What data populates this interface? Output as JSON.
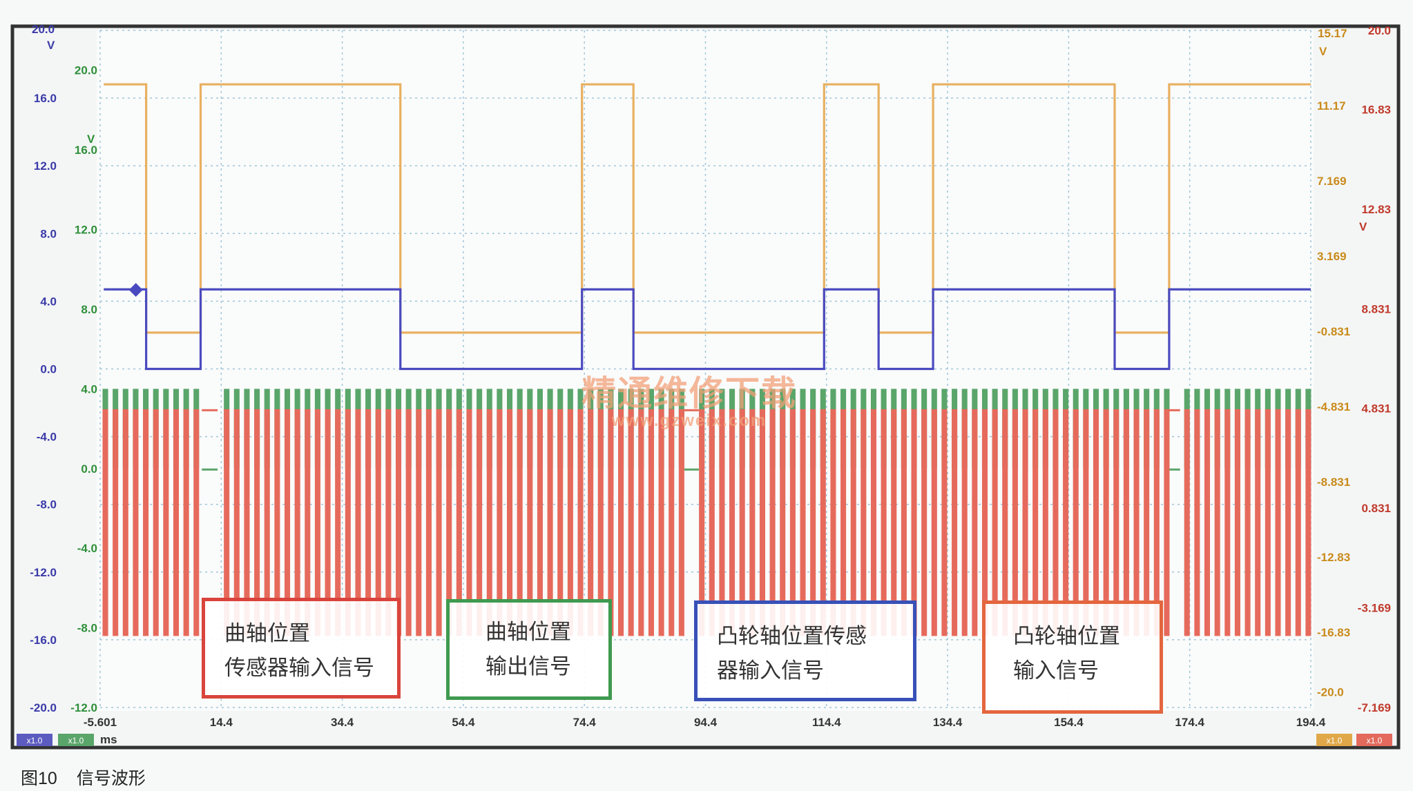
{
  "chart_data": {
    "type": "line",
    "title": "",
    "x_unit": "ms",
    "x_ticks": [
      "-5.601",
      "14.4",
      "34.4",
      "54.4",
      "74.4",
      "94.4",
      "114.4",
      "134.4",
      "154.4",
      "174.4",
      "194.4"
    ],
    "xlim": [
      -5.601,
      194.4
    ],
    "axes": {
      "blue_v": {
        "unit_label": "V",
        "top_label": "20.0",
        "ticks": [
          "16.0",
          "12.0",
          "8.0",
          "4.0",
          "0.0",
          "-4.0",
          "-8.0",
          "-12.0",
          "-16.0",
          "-20.0"
        ],
        "ylim": [
          -20,
          20
        ],
        "color": "#3a3aa8"
      },
      "green_v": {
        "unit_label": "V",
        "ticks": [
          "20.0",
          "16.0",
          "12.0",
          "8.0",
          "4.0",
          "0.0",
          "-4.0",
          "-8.0",
          "-12.0"
        ],
        "ylim": [
          -12,
          22
        ],
        "color": "#2f8f3a"
      },
      "orange_v": {
        "unit_label": "V",
        "top_label": "15.17",
        "ticks": [
          "11.17",
          "7.169",
          "3.169",
          "-0.831",
          "-4.831",
          "-8.831",
          "-12.83",
          "-16.83",
          "-20.0"
        ],
        "ylim": [
          -20.83,
          15.17
        ],
        "color": "#c98a1a"
      },
      "red_v": {
        "unit_label": "V",
        "ticks": [
          "20.0",
          "16.83",
          "12.83",
          "8.831",
          "4.831",
          "0.831",
          "-3.169",
          "-7.169"
        ],
        "ylim": [
          -7.169,
          20.0
        ],
        "color": "#c0392b"
      }
    },
    "series": [
      {
        "axis": "orange_v",
        "color": "#e8b060",
        "high": 12.3,
        "low": -0.9,
        "transitions_ms": [
          2.0,
          11.0,
          44.0,
          74.0,
          82.5,
          114.0,
          123.0,
          132.0,
          162.0,
          171.0
        ],
        "start_level": "high"
      },
      {
        "axis": "blue_v",
        "color": "#4a4ac0",
        "high": 4.7,
        "low": 0.0,
        "transitions_ms": [
          2.0,
          11.0,
          44.0,
          74.0,
          82.5,
          114.0,
          123.0,
          132.0,
          162.0,
          171.0
        ],
        "start_level": "high"
      },
      {
        "axis": "green_v",
        "color": "#5aa56a",
        "high": 4.0,
        "low": 0.0,
        "pulse_period_ms": 1.67,
        "missing_tooth_ms": [
          12.5,
          92.0,
          171.5
        ]
      },
      {
        "axis": "red_v",
        "color": "#e66a5c",
        "high": 4.8,
        "low": -4.3,
        "pulse_period_ms": 1.67,
        "missing_tooth_ms": [
          12.5,
          92.0,
          171.5
        ]
      }
    ],
    "annotations": [
      {
        "color": "#d9443c",
        "lines": [
          "曲轴位置",
          "传感器输入信号"
        ]
      },
      {
        "color": "#3f9a4f",
        "lines": [
          "曲轴位置",
          "输出信号"
        ]
      },
      {
        "color": "#3850b8",
        "lines": [
          "凸轮轴位置传感",
          "器输入信号"
        ]
      },
      {
        "color": "#e3663e",
        "lines": [
          "凸轮轴位置",
          "输入信号"
        ]
      }
    ],
    "channel_badges": [
      "x1.0",
      "x1.0",
      "x1.0",
      "x1.0"
    ]
  },
  "watermark": {
    "cn": "精通维修下载",
    "url": "www.gzweix.com"
  },
  "caption": {
    "figure": "图10",
    "text": "信号波形"
  }
}
